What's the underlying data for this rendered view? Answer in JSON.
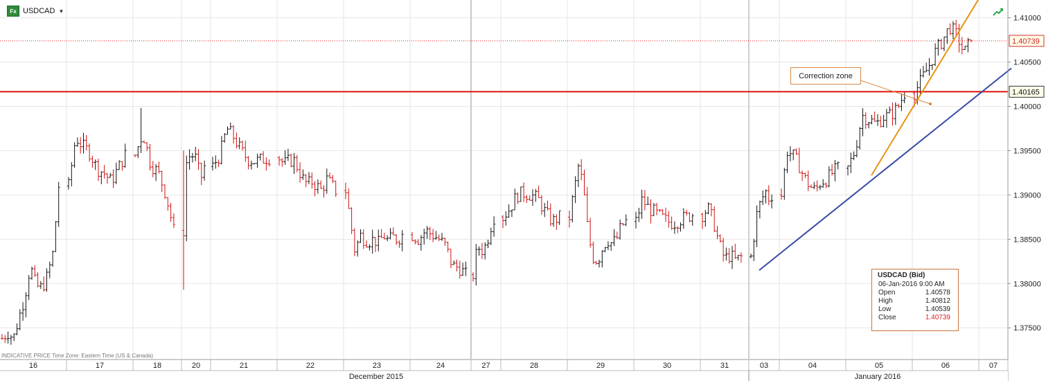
{
  "header": {
    "symbol": "USDCAD",
    "fx_badge": "Fx"
  },
  "footer_note": "INDICATIVE PRICE   Time Zone: Eastern Time (US & Canada)",
  "tooltip": {
    "title": "USDCAD (Bid)",
    "datetime": "06-Jan-2016 9:00 AM",
    "rows": [
      {
        "label": "Open",
        "value": "1.40578"
      },
      {
        "label": "High",
        "value": "1.40812"
      },
      {
        "label": "Low",
        "value": "1.40539"
      },
      {
        "label": "Close",
        "value": "1.40739"
      }
    ]
  },
  "annotation": {
    "text": "Correction zone"
  },
  "colors": {
    "up_bar": "#111111",
    "down_bar": "#d01010",
    "resistance": "#e01010",
    "orange_trend": "#e8920f",
    "blue_trend": "#3949a5",
    "grid": "#e6e6e6",
    "price_tag_border": "#d03030"
  },
  "chart_data": {
    "type": "ohlc",
    "instrument": "USDCAD",
    "yticks": [
      1.375,
      1.38,
      1.385,
      1.39,
      1.395,
      1.4,
      1.405,
      1.41
    ],
    "ytick_labels": [
      "1.37500",
      "1.38000",
      "1.38500",
      "1.39000",
      "1.39500",
      "1.40000",
      "1.40500",
      "1.41000"
    ],
    "ylim": [
      1.3715,
      1.412
    ],
    "x_day_labels": [
      "16",
      "17",
      "18",
      "20",
      "21",
      "22",
      "23",
      "24",
      "27",
      "28",
      "29",
      "30",
      "31",
      "03",
      "04",
      "05",
      "06",
      "07"
    ],
    "x_month_labels": [
      "December 2015",
      "January 2016"
    ],
    "last_price": 1.40739,
    "last_price_label": "1.40739",
    "resistance_level": 1.40165,
    "resistance_label": "1.40165",
    "daily_path": [
      [
        1.3738,
        1.3745,
        1.3738,
        1.3762,
        1.3785,
        1.382,
        1.3797,
        1.3795,
        1.3808,
        1.3835,
        1.391
      ],
      [
        1.391,
        1.3965,
        1.3955,
        1.3948,
        1.393,
        1.3925,
        1.3915,
        1.393,
        1.3945
      ],
      [
        1.3945,
        1.397,
        1.3935,
        1.3925,
        1.39,
        1.386
      ],
      [
        1.386,
        1.3935,
        1.3945,
        1.394,
        1.395,
        1.3935,
        1.3925,
        1.392,
        1.3932
      ],
      [
        1.3932,
        1.3945,
        1.3975,
        1.3965,
        1.395,
        1.394,
        1.3938,
        1.394,
        1.3942
      ],
      [
        1.3942,
        1.3935,
        1.3938,
        1.394,
        1.393,
        1.3918,
        1.3912,
        1.3915,
        1.391,
        1.3905,
        1.3918,
        1.3912,
        1.3905
      ],
      [
        1.3905,
        1.387,
        1.3835,
        1.3855,
        1.385,
        1.3848,
        1.385,
        1.3845,
        1.3855,
        1.3848,
        1.3852,
        1.385,
        1.3855
      ],
      [
        1.3855,
        1.385,
        1.386,
        1.3855,
        1.385,
        1.3842,
        1.382,
        1.3818,
        1.381
      ],
      [
        1.381,
        1.3832,
        1.384,
        1.3838,
        1.3842,
        1.3852,
        1.3865,
        1.3875
      ],
      [
        1.3875,
        1.3885,
        1.39,
        1.3902,
        1.39,
        1.3895,
        1.388,
        1.387,
        1.3875
      ],
      [
        1.3875,
        1.3905,
        1.3935,
        1.3905,
        1.3855,
        1.383,
        1.3825,
        1.384,
        1.385,
        1.3845,
        1.385,
        1.3865,
        1.387
      ],
      [
        1.387,
        1.3895,
        1.3885,
        1.388,
        1.3875,
        1.387,
        1.3868,
        1.3872,
        1.3875,
        1.3878
      ],
      [
        1.3878,
        1.3885,
        1.387,
        1.3845,
        1.3828,
        1.3832,
        1.3826,
        1.383
      ],
      [
        1.383,
        1.385,
        1.3875,
        1.3885,
        1.3895,
        1.39,
        1.3905,
        1.3895,
        1.39
      ],
      [
        1.39,
        1.395,
        1.3945,
        1.3935,
        1.392,
        1.391,
        1.3905,
        1.3915,
        1.3918,
        1.3925,
        1.393
      ],
      [
        1.393,
        1.395,
        1.399,
        1.3985,
        1.398,
        1.3988,
        1.399,
        1.3998,
        1.4015
      ],
      [
        1.4015,
        1.403,
        1.4045,
        1.4062,
        1.4075,
        1.409,
        1.408,
        1.406,
        1.4074
      ]
    ]
  }
}
